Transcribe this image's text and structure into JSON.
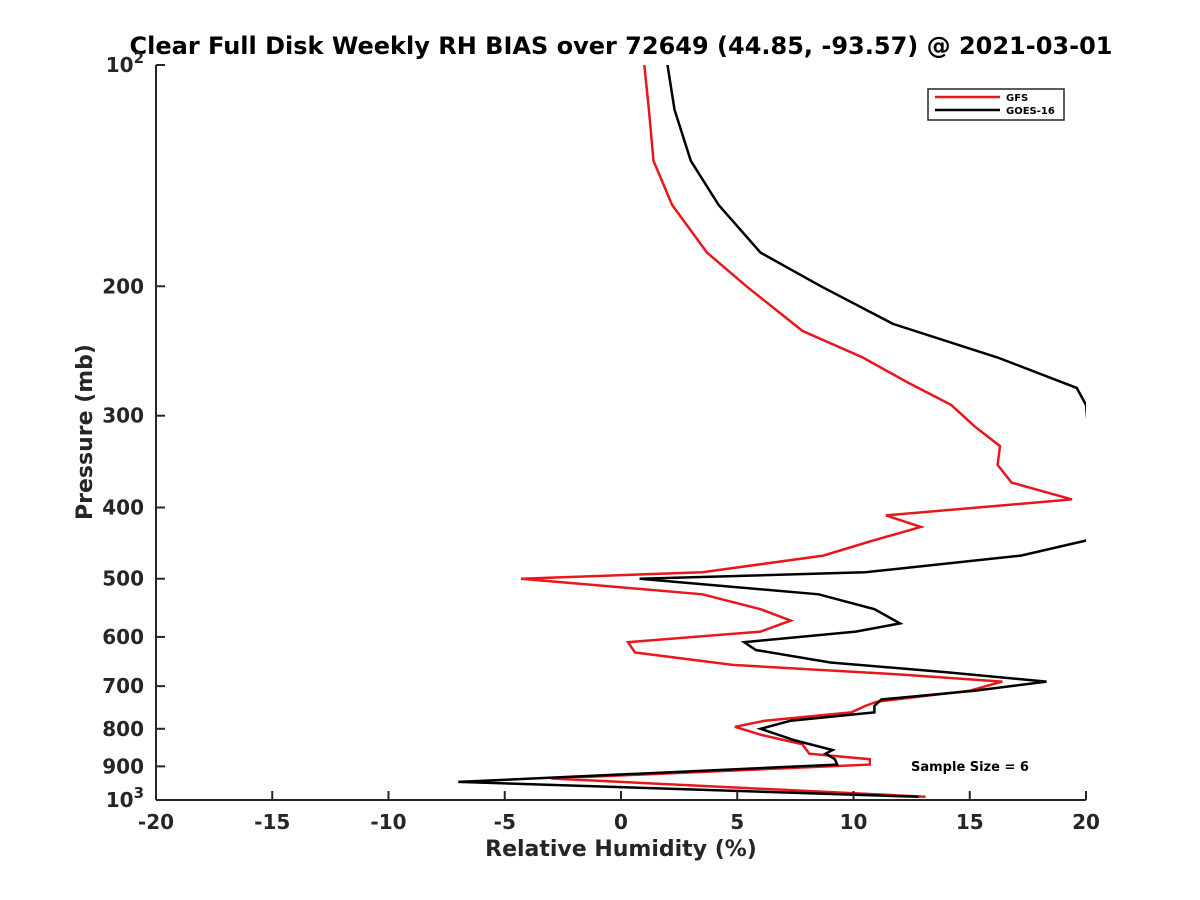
{
  "chart_data": {
    "type": "line",
    "title": "Clear Full Disk Weekly RH BIAS over 72649 (44.85, -93.57) @ 2021-03-01",
    "xlabel": "Relative Humidity (%)",
    "ylabel": "Pressure (mb)",
    "xlim": [
      -20,
      20
    ],
    "ylim": [
      100,
      1000
    ],
    "y_scale": "log",
    "y_reversed": true,
    "grid": false,
    "legend_position": "top-right",
    "x_ticks": [
      "-20",
      "-15",
      "-10",
      "-5",
      "0",
      "5",
      "10",
      "15",
      "20"
    ],
    "y_ticks": [
      {
        "value": 100,
        "base": "10",
        "exp": "2"
      },
      {
        "value": 200,
        "label": "200"
      },
      {
        "value": 300,
        "label": "300"
      },
      {
        "value": 400,
        "label": "400"
      },
      {
        "value": 500,
        "label": "500"
      },
      {
        "value": 600,
        "label": "600"
      },
      {
        "value": 700,
        "label": "700"
      },
      {
        "value": 800,
        "label": "800"
      },
      {
        "value": 900,
        "label": "900"
      },
      {
        "value": 1000,
        "base": "10",
        "exp": "3"
      }
    ],
    "annotation": "Sample Size = 6",
    "series": [
      {
        "name": "GFS",
        "color": "#e8171b",
        "points": [
          [
            1.0,
            100
          ],
          [
            1.2,
            115
          ],
          [
            1.4,
            135
          ],
          [
            2.2,
            155
          ],
          [
            3.7,
            180
          ],
          [
            5.4,
            200
          ],
          [
            7.8,
            230
          ],
          [
            10.4,
            250
          ],
          [
            12.3,
            270
          ],
          [
            14.2,
            290
          ],
          [
            15.2,
            310
          ],
          [
            16.3,
            330
          ],
          [
            16.2,
            350
          ],
          [
            16.8,
            370
          ],
          [
            19.4,
            390
          ],
          [
            11.4,
            410
          ],
          [
            12.9,
            425
          ],
          [
            10.7,
            445
          ],
          [
            8.7,
            465
          ],
          [
            3.5,
            490
          ],
          [
            -4.3,
            500
          ],
          [
            3.5,
            525
          ],
          [
            6.0,
            550
          ],
          [
            7.3,
            570
          ],
          [
            6.0,
            590
          ],
          [
            0.3,
            610
          ],
          [
            0.6,
            630
          ],
          [
            4.8,
            655
          ],
          [
            12.0,
            675
          ],
          [
            16.4,
            690
          ],
          [
            15.0,
            710
          ],
          [
            11.0,
            735
          ],
          [
            10.5,
            745
          ],
          [
            9.9,
            760
          ],
          [
            6.2,
            780
          ],
          [
            4.9,
            795
          ],
          [
            6.0,
            815
          ],
          [
            7.8,
            840
          ],
          [
            8.1,
            865
          ],
          [
            10.7,
            880
          ],
          [
            10.7,
            895
          ],
          [
            -3.0,
            935
          ],
          [
            13.1,
            990
          ]
        ]
      },
      {
        "name": "GOES-16",
        "color": "#000000",
        "points": [
          [
            2.0,
            100
          ],
          [
            2.3,
            115
          ],
          [
            3.0,
            135
          ],
          [
            4.2,
            155
          ],
          [
            6.0,
            180
          ],
          [
            8.6,
            200
          ],
          [
            11.7,
            225
          ],
          [
            16.2,
            250
          ],
          [
            19.6,
            275
          ],
          [
            20.0,
            290
          ],
          [
            20.5,
            440
          ],
          [
            17.2,
            465
          ],
          [
            10.5,
            490
          ],
          [
            0.8,
            500
          ],
          [
            8.5,
            525
          ],
          [
            10.9,
            550
          ],
          [
            12.0,
            575
          ],
          [
            10.1,
            590
          ],
          [
            5.3,
            610
          ],
          [
            5.8,
            625
          ],
          [
            9.0,
            650
          ],
          [
            14.0,
            670
          ],
          [
            18.3,
            690
          ],
          [
            15.2,
            710
          ],
          [
            11.2,
            730
          ],
          [
            10.9,
            745
          ],
          [
            10.9,
            760
          ],
          [
            7.3,
            780
          ],
          [
            6.0,
            800
          ],
          [
            7.5,
            830
          ],
          [
            9.1,
            855
          ],
          [
            8.8,
            865
          ],
          [
            9.2,
            880
          ],
          [
            9.3,
            895
          ],
          [
            -7.0,
            945
          ],
          [
            12.8,
            990
          ]
        ]
      }
    ]
  }
}
